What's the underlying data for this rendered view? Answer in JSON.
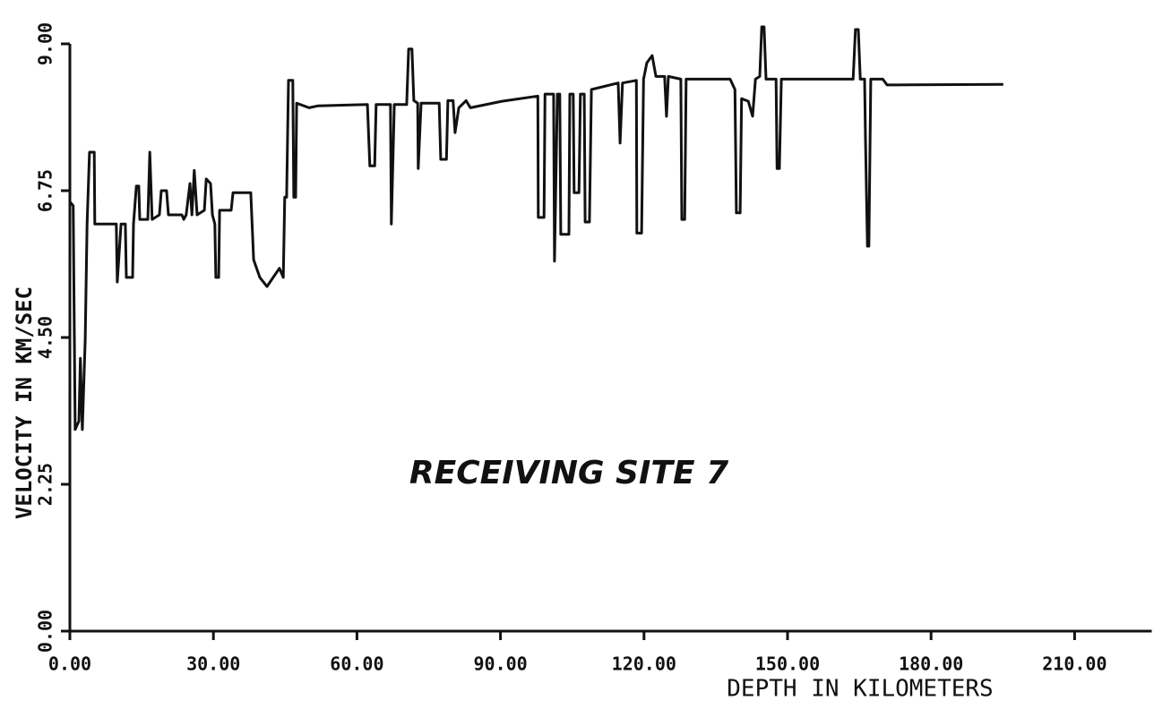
{
  "chart_data": {
    "type": "line",
    "annotation": "RECEIVING SITE 7",
    "y_label": "VELOCITY IN KM/SEC",
    "x_label": "DEPTH IN KILOMETERS",
    "color": "#111111",
    "xlim": [
      0,
      225
    ],
    "ylim": [
      0,
      9
    ],
    "xticks": [
      {
        "value": 0,
        "label": "0.00"
      },
      {
        "value": 30,
        "label": "30.00"
      },
      {
        "value": 60,
        "label": "60.00"
      },
      {
        "value": 90,
        "label": "90.00"
      },
      {
        "value": 120,
        "label": "120.00"
      },
      {
        "value": 150,
        "label": "150.00"
      },
      {
        "value": 180,
        "label": "180.00"
      },
      {
        "value": 210,
        "label": "210.00"
      }
    ],
    "yticks": [
      {
        "value": 0,
        "label": "0.00"
      },
      {
        "value": 2.25,
        "label": "2.25"
      },
      {
        "value": 4.5,
        "label": "4.50"
      },
      {
        "value": 6.75,
        "label": "6.75"
      },
      {
        "value": 9,
        "label": "9.00"
      }
    ],
    "x": [
      0,
      0.7,
      1.1,
      1.9,
      2.2,
      2.6,
      3.2,
      3.6,
      4.1,
      5.1,
      5.2,
      9.7,
      9.9,
      10.7,
      11.6,
      11.8,
      13.1,
      13.3,
      13.9,
      14.4,
      14.6,
      16.3,
      16.7,
      17.2,
      18.7,
      19.1,
      20.2,
      20.6,
      23.4,
      23.8,
      24.3,
      25.1,
      25.5,
      26.0,
      26.6,
      28.1,
      28.5,
      29.4,
      29.8,
      30.3,
      30.5,
      31.1,
      31.3,
      33.7,
      34.1,
      37.8,
      38.4,
      39.7,
      41.2,
      42.5,
      43.8,
      44.6,
      44.9,
      45.3,
      45.7,
      46.6,
      46.8,
      47.2,
      47.4,
      50.0,
      51.9,
      62.2,
      62.7,
      63.7,
      64.0,
      67.0,
      67.2,
      67.8,
      70.4,
      70.8,
      71.5,
      71.9,
      72.7,
      72.8,
      73.4,
      77.2,
      77.5,
      78.7,
      79.0,
      80.1,
      80.5,
      81.3,
      82.8,
      83.7,
      90.3,
      97.8,
      97.9,
      99.1,
      99.3,
      101.1,
      101.3,
      101.9,
      102.4,
      102.6,
      104.3,
      104.5,
      105.2,
      105.4,
      106.4,
      106.7,
      107.5,
      107.7,
      108.6,
      109.0,
      114.6,
      115.0,
      115.5,
      118.4,
      118.5,
      119.5,
      119.9,
      120.6,
      121.7,
      122.5,
      124.3,
      124.7,
      125.1,
      127.7,
      127.9,
      128.5,
      128.8,
      138.0,
      139.0,
      139.3,
      140.1,
      140.4,
      141.8,
      142.7,
      143.3,
      144.2,
      144.6,
      145.1,
      145.5,
      147.6,
      147.8,
      148.3,
      148.7,
      163.7,
      164.2,
      164.8,
      165.2,
      166.1,
      166.3,
      166.7,
      167.0,
      167.4,
      169.9,
      170.8,
      172.7,
      195.1
    ],
    "values": [
      6.58,
      6.52,
      3.09,
      3.22,
      4.18,
      3.09,
      4.46,
      6.24,
      7.34,
      7.34,
      6.24,
      6.24,
      5.35,
      6.24,
      6.24,
      5.42,
      5.42,
      6.24,
      6.82,
      6.82,
      6.31,
      6.31,
      7.34,
      6.31,
      6.38,
      6.75,
      6.75,
      6.38,
      6.38,
      6.31,
      6.38,
      6.86,
      6.38,
      7.06,
      6.38,
      6.45,
      6.93,
      6.86,
      6.38,
      6.24,
      5.42,
      5.42,
      6.45,
      6.45,
      6.72,
      6.72,
      5.69,
      5.42,
      5.28,
      5.42,
      5.56,
      5.42,
      6.65,
      6.65,
      8.44,
      8.44,
      6.65,
      6.65,
      8.09,
      8.02,
      8.05,
      8.07,
      7.13,
      7.13,
      8.07,
      8.07,
      6.24,
      8.07,
      8.07,
      8.92,
      8.92,
      8.13,
      8.09,
      7.09,
      8.09,
      8.09,
      7.23,
      7.23,
      8.13,
      8.13,
      7.64,
      8.02,
      8.13,
      8.02,
      8.12,
      8.2,
      6.34,
      6.34,
      8.23,
      8.23,
      5.67,
      8.23,
      8.23,
      6.08,
      6.08,
      8.23,
      8.23,
      6.72,
      6.72,
      8.23,
      8.23,
      6.27,
      6.27,
      8.3,
      8.4,
      7.48,
      8.4,
      8.44,
      6.1,
      6.1,
      8.46,
      8.71,
      8.82,
      8.5,
      8.5,
      7.89,
      8.5,
      8.46,
      6.31,
      6.31,
      8.46,
      8.46,
      8.3,
      6.41,
      6.41,
      8.16,
      8.12,
      7.89,
      8.46,
      8.5,
      9.26,
      9.26,
      8.46,
      8.46,
      7.09,
      7.09,
      8.46,
      8.46,
      9.22,
      9.22,
      8.46,
      8.46,
      7.54,
      5.9,
      5.9,
      8.46,
      8.46,
      8.37,
      8.37,
      8.38
    ]
  }
}
